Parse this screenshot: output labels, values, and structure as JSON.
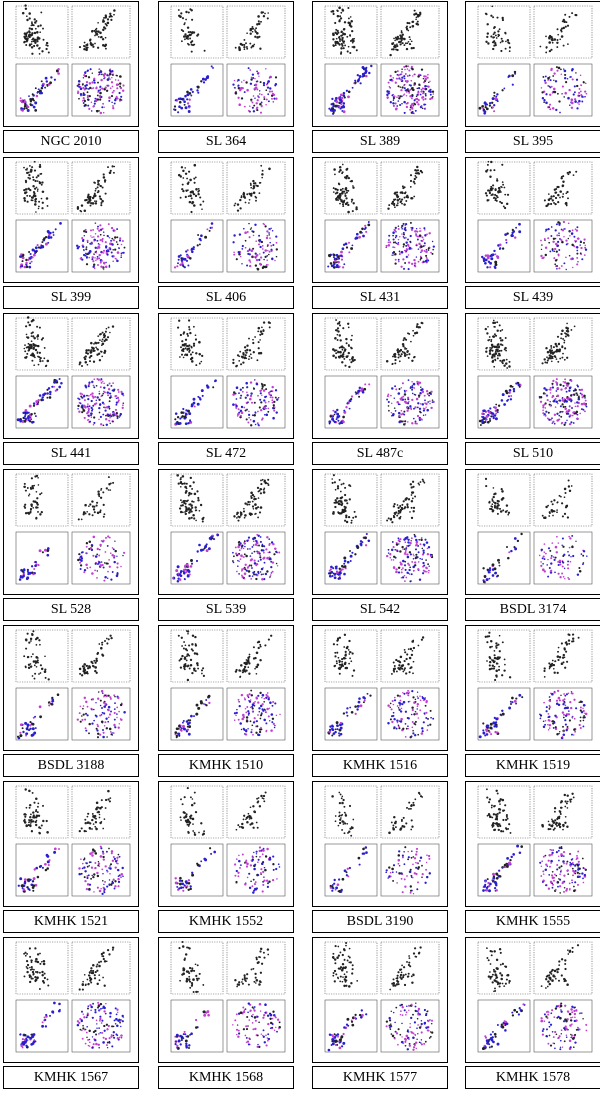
{
  "panels": [
    {
      "label": "NGC 2010",
      "density": 0.85
    },
    {
      "label": "SL 364",
      "density": 0.45
    },
    {
      "label": "SL 389",
      "density": 1.0
    },
    {
      "label": "SL 395",
      "density": 0.4
    },
    {
      "label": "SL 399",
      "density": 0.8
    },
    {
      "label": "SL 406",
      "density": 0.45
    },
    {
      "label": "SL 431",
      "density": 0.75
    },
    {
      "label": "SL 439",
      "density": 0.5
    },
    {
      "label": "SL 441",
      "density": 0.9
    },
    {
      "label": "SL 472",
      "density": 0.55
    },
    {
      "label": "SL 487c",
      "density": 0.65
    },
    {
      "label": "SL 510",
      "density": 0.95
    },
    {
      "label": "SL 528",
      "density": 0.35
    },
    {
      "label": "SL 539",
      "density": 0.8
    },
    {
      "label": "SL 542",
      "density": 0.7
    },
    {
      "label": "BSDL 3174",
      "density": 0.3
    },
    {
      "label": "BSDL 3188",
      "density": 0.45
    },
    {
      "label": "KMHK 1510",
      "density": 0.55
    },
    {
      "label": "KMHK 1516",
      "density": 0.5
    },
    {
      "label": "KMHK 1519",
      "density": 0.55
    },
    {
      "label": "KMHK 1521",
      "density": 0.5
    },
    {
      "label": "KMHK 1552",
      "density": 0.35
    },
    {
      "label": "BSDL 3190",
      "density": 0.25
    },
    {
      "label": "KMHK 1555",
      "density": 0.65
    },
    {
      "label": "KMHK 1567",
      "density": 0.6
    },
    {
      "label": "KMHK 1568",
      "density": 0.4
    },
    {
      "label": "KMHK 1577",
      "density": 0.55
    },
    {
      "label": "KMHK 1578",
      "density": 0.5
    }
  ],
  "colors": {
    "dark_points": "#222222",
    "blue_points": "#2a1fd0",
    "magenta_points": "#c040d0"
  }
}
